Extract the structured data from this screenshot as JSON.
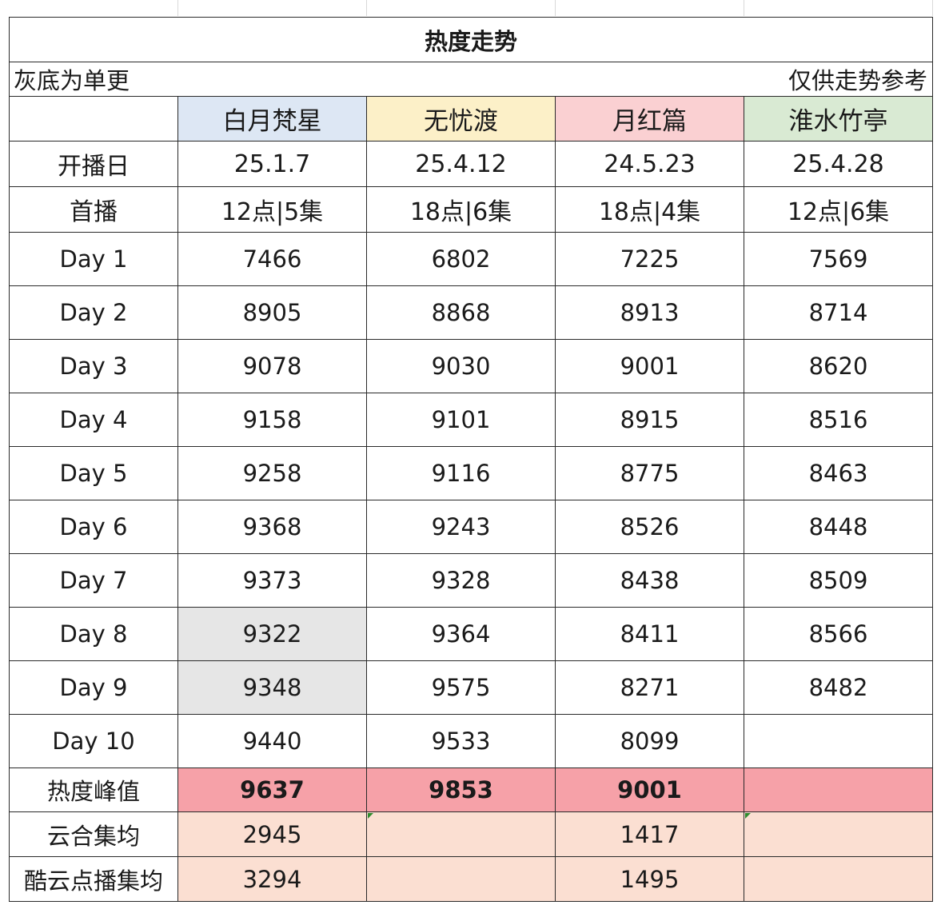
{
  "title": "热度走势",
  "notes": {
    "left": "灰底为单更",
    "right": "仅供走势参考"
  },
  "columns": [
    {
      "name": "白月梵星",
      "color": "#dde7f4"
    },
    {
      "name": "无忧渡",
      "color": "#fcf0c8"
    },
    {
      "name": "月红篇",
      "color": "#fad0d2"
    },
    {
      "name": "淮水竹亭",
      "color": "#d9ead3"
    }
  ],
  "info_rows": [
    {
      "label": "开播日",
      "values": [
        "25.1.7",
        "25.4.12",
        "24.5.23",
        "25.4.28"
      ]
    },
    {
      "label": "首播",
      "values": [
        "12点|5集",
        "18点|6集",
        "18点|4集",
        "12点|6集"
      ]
    }
  ],
  "day_rows": [
    {
      "label": "Day 1",
      "values": [
        "7466",
        "6802",
        "7225",
        "7569"
      ],
      "gray": [
        false,
        false,
        false,
        false
      ]
    },
    {
      "label": "Day 2",
      "values": [
        "8905",
        "8868",
        "8913",
        "8714"
      ],
      "gray": [
        false,
        false,
        false,
        false
      ]
    },
    {
      "label": "Day 3",
      "values": [
        "9078",
        "9030",
        "9001",
        "8620"
      ],
      "gray": [
        false,
        false,
        false,
        false
      ]
    },
    {
      "label": "Day 4",
      "values": [
        "9158",
        "9101",
        "8915",
        "8516"
      ],
      "gray": [
        false,
        false,
        false,
        false
      ]
    },
    {
      "label": "Day 5",
      "values": [
        "9258",
        "9116",
        "8775",
        "8463"
      ],
      "gray": [
        false,
        false,
        false,
        false
      ]
    },
    {
      "label": "Day 6",
      "values": [
        "9368",
        "9243",
        "8526",
        "8448"
      ],
      "gray": [
        false,
        false,
        false,
        false
      ]
    },
    {
      "label": "Day 7",
      "values": [
        "9373",
        "9328",
        "8438",
        "8509"
      ],
      "gray": [
        false,
        false,
        false,
        false
      ]
    },
    {
      "label": "Day 8",
      "values": [
        "9322",
        "9364",
        "8411",
        "8566"
      ],
      "gray": [
        true,
        false,
        false,
        false
      ]
    },
    {
      "label": "Day 9",
      "values": [
        "9348",
        "9575",
        "8271",
        "8482"
      ],
      "gray": [
        true,
        false,
        false,
        false
      ]
    },
    {
      "label": "Day 10",
      "values": [
        "9440",
        "9533",
        "8099",
        ""
      ],
      "gray": [
        false,
        false,
        false,
        false
      ]
    }
  ],
  "peak_row": {
    "label": "热度峰值",
    "values": [
      "9637",
      "9853",
      "9001",
      ""
    ]
  },
  "avg_rows": [
    {
      "label": "云合集均",
      "values": [
        "2945",
        "",
        "1417",
        ""
      ]
    },
    {
      "label": "酷云点播集均",
      "values": [
        "3294",
        "",
        "1495",
        ""
      ]
    }
  ],
  "colors": {
    "peak": "#f6a1a8",
    "avg": "#fbdfd2",
    "single_update_gray": "#e6e6e6",
    "border": "#2a2a2a"
  }
}
